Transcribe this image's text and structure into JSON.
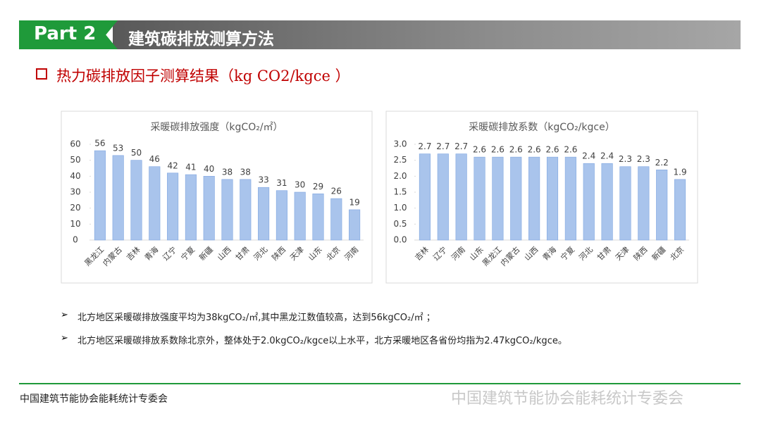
{
  "header": {
    "part": "Part 2",
    "title": "建筑碳排放测算方法"
  },
  "subtitle": "热力碳排放因子测算结果（kg CO2/kgce ）",
  "chart_data": [
    {
      "type": "bar",
      "title": "采暖碳排放强度（kgCO₂/㎡）",
      "categories": [
        "黑龙江",
        "内蒙古",
        "吉林",
        "青海",
        "辽宁",
        "宁夏",
        "新疆",
        "山西",
        "甘肃",
        "河北",
        "陕西",
        "天津",
        "山东",
        "北京",
        "河南"
      ],
      "values": [
        56,
        53,
        50,
        46,
        42,
        41,
        40,
        38,
        38,
        33,
        31,
        30,
        29,
        26,
        19
      ],
      "color": "#a9c4ec",
      "ylim": [
        0,
        60
      ],
      "yticks": [
        0,
        10,
        20,
        30,
        40,
        50,
        60
      ],
      "grid": false
    },
    {
      "type": "bar",
      "title": "采暖碳排放系数（kgCO₂/kgce）",
      "categories": [
        "吉林",
        "辽宁",
        "河南",
        "山东",
        "黑龙江",
        "内蒙古",
        "山西",
        "青海",
        "宁夏",
        "河北",
        "甘肃",
        "天津",
        "陕西",
        "新疆",
        "北京"
      ],
      "values": [
        2.7,
        2.7,
        2.7,
        2.6,
        2.6,
        2.6,
        2.6,
        2.6,
        2.6,
        2.4,
        2.4,
        2.3,
        2.3,
        2.2,
        1.9
      ],
      "color": "#a9c4ec",
      "ylim": [
        0,
        3
      ],
      "yticks": [
        {
          "value": 0,
          "label": "0.0"
        },
        0.5,
        {
          "value": 1,
          "label": "1.0"
        },
        1.5,
        {
          "value": 2,
          "label": "2.0"
        },
        2.5,
        {
          "value": 3,
          "label": "3.0"
        }
      ],
      "grid": false
    }
  ],
  "bullets": [
    "北方地区采暖碳排放强度平均为38kgCO₂/㎡,其中黑龙江数值较高，达到56kgCO₂/㎡ ；",
    "北方地区采暖碳排放系数除北京外，整体处于2.0kgCO₂/kgce以上水平，北方采暖地区各省份均指为2.47kgCO₂/kgce。"
  ],
  "footer": {
    "left": "中国建筑节能协会能耗统计专委会",
    "watermark": "中国建筑节能协会能耗统计专委会"
  }
}
